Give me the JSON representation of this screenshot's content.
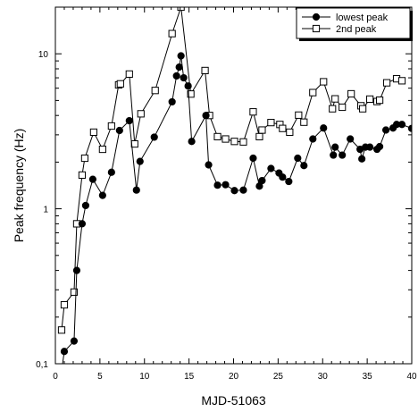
{
  "chart_data": {
    "type": "line",
    "xlabel": "MJD-51063",
    "ylabel": "Peak frequency (Hz)",
    "xlim": [
      0,
      40
    ],
    "ylim": [
      0.1,
      20
    ],
    "yscale": "log",
    "x_ticks": [
      0,
      5,
      10,
      15,
      20,
      25,
      30,
      35,
      40
    ],
    "y_ticks": [
      {
        "value": 0.1,
        "label": "0,1"
      },
      {
        "value": 1,
        "label": "1"
      },
      {
        "value": 10,
        "label": "10"
      }
    ],
    "grid": false,
    "legend_position": "top-right",
    "series": [
      {
        "name": "lowest peak",
        "marker": "filled-circle",
        "color": "#000000",
        "points": [
          [
            0.7,
            0.09
          ],
          [
            1.0,
            0.12
          ],
          [
            2.1,
            0.14
          ],
          [
            2.4,
            0.4
          ],
          [
            3.0,
            0.8
          ],
          [
            3.4,
            1.05
          ],
          [
            4.2,
            1.55
          ],
          [
            5.3,
            1.22
          ],
          [
            6.3,
            1.72
          ],
          [
            7.2,
            3.2
          ],
          [
            8.3,
            3.7
          ],
          [
            9.1,
            1.32
          ],
          [
            9.5,
            2.02
          ],
          [
            11.1,
            2.9
          ],
          [
            13.1,
            4.9
          ],
          [
            13.6,
            7.2
          ],
          [
            13.9,
            8.2
          ],
          [
            14.1,
            9.7
          ],
          [
            14.4,
            7.0
          ],
          [
            14.9,
            6.2
          ],
          [
            15.3,
            2.72
          ],
          [
            16.9,
            4.0
          ],
          [
            17.2,
            1.92
          ],
          [
            18.2,
            1.42
          ],
          [
            19.1,
            1.43
          ],
          [
            20.1,
            1.31
          ],
          [
            21.1,
            1.32
          ],
          [
            22.2,
            2.12
          ],
          [
            22.9,
            1.4
          ],
          [
            23.2,
            1.52
          ],
          [
            24.2,
            1.82
          ],
          [
            25.1,
            1.7
          ],
          [
            25.5,
            1.6
          ],
          [
            26.2,
            1.5
          ],
          [
            27.2,
            2.12
          ],
          [
            27.9,
            1.9
          ],
          [
            28.9,
            2.82
          ],
          [
            30.1,
            3.32
          ],
          [
            31.2,
            2.22
          ],
          [
            31.4,
            2.5
          ],
          [
            32.2,
            2.22
          ],
          [
            33.1,
            2.82
          ],
          [
            34.2,
            2.42
          ],
          [
            34.4,
            2.1
          ],
          [
            34.8,
            2.5
          ],
          [
            35.3,
            2.5
          ],
          [
            36.1,
            2.42
          ],
          [
            36.4,
            2.52
          ],
          [
            37.1,
            3.22
          ],
          [
            37.9,
            3.32
          ],
          [
            38.3,
            3.5
          ],
          [
            38.9,
            3.5
          ],
          [
            40.0,
            3.3
          ]
        ]
      },
      {
        "name": "2nd peak",
        "marker": "open-square",
        "color": "#000000",
        "points": [
          [
            0.7,
            0.165
          ],
          [
            1.0,
            0.24
          ],
          [
            2.1,
            0.29
          ],
          [
            2.4,
            0.8
          ],
          [
            3.0,
            1.65
          ],
          [
            3.3,
            2.12
          ],
          [
            4.3,
            3.12
          ],
          [
            5.3,
            2.42
          ],
          [
            6.3,
            3.42
          ],
          [
            7.1,
            6.3
          ],
          [
            7.3,
            6.4
          ],
          [
            8.3,
            7.4
          ],
          [
            8.9,
            2.62
          ],
          [
            9.6,
            4.1
          ],
          [
            11.2,
            5.8
          ],
          [
            13.1,
            13.5
          ],
          [
            14.1,
            20.0
          ],
          [
            15.2,
            5.5
          ],
          [
            16.8,
            7.8
          ],
          [
            17.3,
            4.0
          ],
          [
            18.2,
            2.92
          ],
          [
            19.1,
            2.82
          ],
          [
            20.1,
            2.72
          ],
          [
            21.1,
            2.7
          ],
          [
            22.2,
            4.22
          ],
          [
            22.9,
            2.92
          ],
          [
            23.2,
            3.22
          ],
          [
            24.2,
            3.6
          ],
          [
            25.2,
            3.5
          ],
          [
            25.5,
            3.3
          ],
          [
            26.3,
            3.12
          ],
          [
            27.3,
            4.02
          ],
          [
            27.9,
            3.62
          ],
          [
            28.9,
            5.62
          ],
          [
            30.1,
            6.6
          ],
          [
            31.1,
            4.42
          ],
          [
            31.4,
            5.12
          ],
          [
            32.2,
            4.52
          ],
          [
            33.2,
            5.52
          ],
          [
            34.3,
            4.62
          ],
          [
            34.5,
            4.42
          ],
          [
            35.3,
            5.1
          ],
          [
            36.1,
            4.92
          ],
          [
            36.4,
            5.02
          ],
          [
            37.2,
            6.5
          ],
          [
            38.3,
            6.9
          ],
          [
            38.9,
            6.7
          ]
        ]
      }
    ]
  }
}
